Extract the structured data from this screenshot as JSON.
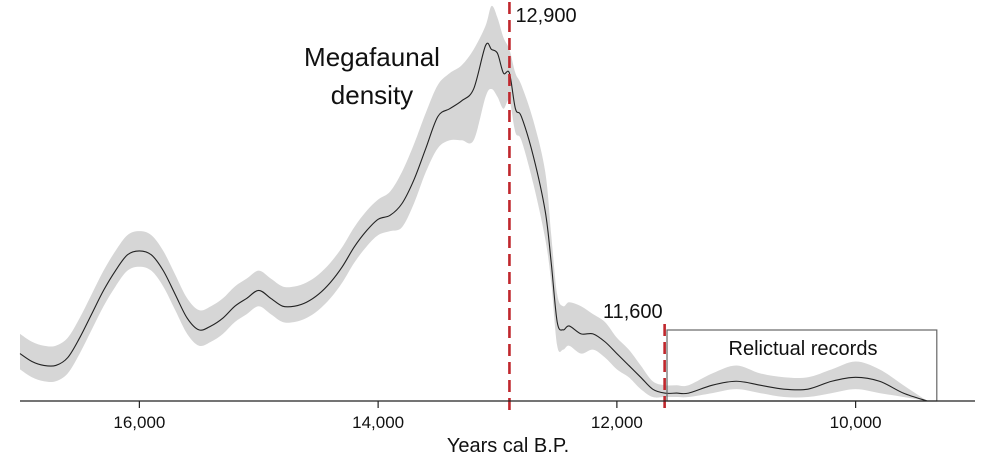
{
  "chart_data": {
    "type": "area",
    "title": "",
    "xlabel": "Years cal B.P.",
    "ylabel": "",
    "x_axis_reversed": true,
    "xlim": [
      17000,
      9000
    ],
    "ylim": [
      0,
      1.0
    ],
    "grid": false,
    "x_ticks": [
      {
        "value": 16000,
        "label": "16,000"
      },
      {
        "value": 14000,
        "label": "14,000"
      },
      {
        "value": 12000,
        "label": "12,000"
      },
      {
        "value": 10000,
        "label": "10,000"
      }
    ],
    "series": [
      {
        "name": "Megafaunal density",
        "color": "#222222",
        "band_color": "#d6d6d6",
        "x": [
          17000,
          16900,
          16800,
          16700,
          16600,
          16500,
          16400,
          16300,
          16200,
          16100,
          16000,
          15900,
          15800,
          15700,
          15600,
          15500,
          15400,
          15300,
          15200,
          15100,
          15000,
          14900,
          14800,
          14700,
          14600,
          14500,
          14400,
          14300,
          14200,
          14100,
          14000,
          13900,
          13800,
          13700,
          13600,
          13500,
          13400,
          13300,
          13200,
          13100,
          13050,
          13000,
          12950,
          12900,
          12850,
          12800,
          12700,
          12600,
          12550,
          12500,
          12450,
          12400,
          12300,
          12200,
          12100,
          12000,
          11900,
          11800,
          11700,
          11600,
          11500,
          11400,
          11200,
          11000,
          10800,
          10600,
          10400,
          10200,
          10000,
          9800,
          9600,
          9400
        ],
        "values": [
          0.12,
          0.1,
          0.09,
          0.09,
          0.11,
          0.16,
          0.22,
          0.28,
          0.33,
          0.37,
          0.38,
          0.37,
          0.33,
          0.27,
          0.21,
          0.18,
          0.19,
          0.21,
          0.24,
          0.26,
          0.28,
          0.26,
          0.24,
          0.24,
          0.25,
          0.27,
          0.3,
          0.34,
          0.39,
          0.43,
          0.46,
          0.47,
          0.5,
          0.56,
          0.64,
          0.72,
          0.74,
          0.76,
          0.79,
          0.9,
          0.89,
          0.88,
          0.83,
          0.83,
          0.74,
          0.72,
          0.62,
          0.48,
          0.35,
          0.2,
          0.18,
          0.19,
          0.17,
          0.17,
          0.15,
          0.12,
          0.09,
          0.06,
          0.03,
          0.02,
          0.02,
          0.02,
          0.04,
          0.05,
          0.04,
          0.03,
          0.03,
          0.05,
          0.06,
          0.05,
          0.02,
          0.0
        ],
        "lower": [
          0.08,
          0.06,
          0.05,
          0.05,
          0.07,
          0.12,
          0.18,
          0.24,
          0.29,
          0.33,
          0.34,
          0.33,
          0.29,
          0.23,
          0.17,
          0.14,
          0.15,
          0.17,
          0.2,
          0.22,
          0.24,
          0.22,
          0.2,
          0.2,
          0.21,
          0.23,
          0.26,
          0.3,
          0.35,
          0.39,
          0.42,
          0.43,
          0.44,
          0.5,
          0.58,
          0.64,
          0.66,
          0.66,
          0.66,
          0.77,
          0.79,
          0.77,
          0.74,
          0.76,
          0.68,
          0.66,
          0.55,
          0.41,
          0.3,
          0.14,
          0.13,
          0.14,
          0.12,
          0.13,
          0.11,
          0.08,
          0.06,
          0.03,
          0.01,
          0.01,
          0.01,
          0.01,
          0.02,
          0.03,
          0.02,
          0.01,
          0.01,
          0.02,
          0.03,
          0.02,
          0.01,
          0.0
        ],
        "upper": [
          0.17,
          0.15,
          0.14,
          0.14,
          0.16,
          0.21,
          0.27,
          0.33,
          0.38,
          0.42,
          0.43,
          0.42,
          0.38,
          0.32,
          0.26,
          0.23,
          0.24,
          0.26,
          0.29,
          0.31,
          0.33,
          0.31,
          0.29,
          0.29,
          0.3,
          0.32,
          0.35,
          0.39,
          0.44,
          0.48,
          0.51,
          0.53,
          0.58,
          0.65,
          0.73,
          0.8,
          0.83,
          0.85,
          0.89,
          0.95,
          1.0,
          0.97,
          0.92,
          0.89,
          0.83,
          0.8,
          0.71,
          0.58,
          0.42,
          0.27,
          0.24,
          0.25,
          0.24,
          0.22,
          0.2,
          0.16,
          0.13,
          0.09,
          0.05,
          0.04,
          0.04,
          0.04,
          0.07,
          0.09,
          0.07,
          0.06,
          0.06,
          0.08,
          0.1,
          0.08,
          0.04,
          0.0
        ]
      }
    ],
    "vlines": [
      {
        "x": 12900,
        "label": "12,900",
        "color": "#c0272d",
        "style": "dashed"
      },
      {
        "x": 11600,
        "label": "11,600",
        "color": "#c0272d",
        "style": "dashed"
      }
    ],
    "annotations": {
      "density_line1": "Megafaunal",
      "density_line2": "density",
      "relictual": "Relictual records"
    },
    "relictual_box": {
      "x_start": 11580,
      "x_end": 9320
    }
  }
}
